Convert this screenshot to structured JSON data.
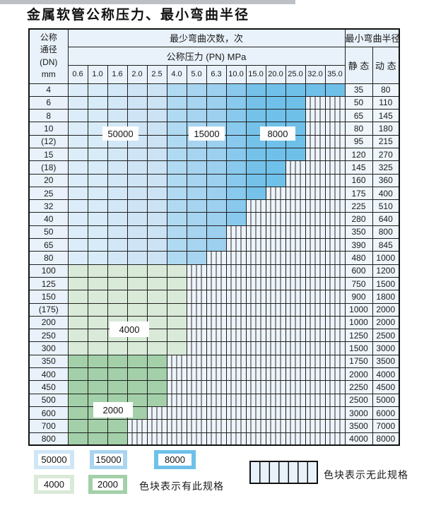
{
  "page": {
    "title": "金属软管公称压力、最小弯曲半径"
  },
  "colors": {
    "grid_line": "#1f1f1f",
    "header_bg": "#e9f2fa",
    "striped_bg": "#edf4fb",
    "stripe_line": "#2e2e2e",
    "blue_columns": [
      "#dcedf9",
      "#d8ebf8",
      "#d3e8f7",
      "#cfe5f6",
      "#cbe3f5",
      "#b0d9f2",
      "#a7d4f0",
      "#9dd0ee",
      "#89c9ed",
      "#74c2ea",
      "#70c1ea",
      "#6fc0e9",
      "#6fc0e9",
      "#6fc0e9"
    ],
    "green_4000": "#d9ead8",
    "green_2000": "#a3d0a9",
    "legend_50000": "#cfe6f7",
    "legend_15000": "#a9d5f0",
    "legend_8000": "#6fc0e9",
    "legend_4000": "#d9ead8",
    "legend_2000": "#a3d0a9"
  },
  "table": {
    "header": {
      "dn_line1": "公称",
      "dn_line2": "通径",
      "dn_line3": "(DN)",
      "dn_line4": "mm",
      "bend_cycles": "最少弯曲次数，次",
      "pressure": "公称压力 (PN) MPa",
      "radius": "最小弯曲半径",
      "static_label": "静 态",
      "dynamic_label": "动 态"
    },
    "pressure_columns": [
      "0.6",
      "1.0",
      "1.6",
      "2.0",
      "2.5",
      "4.0",
      "5.0",
      "6.3",
      "10.0",
      "15.0",
      "20.0",
      "25.0",
      "32.0",
      "35.0"
    ],
    "bend_cycle_bands": {
      "blue_rows_by_pressure": {
        "50000": "0.6–2.5",
        "15000": "4.0–6.3",
        "8000": "10.0–35.0"
      },
      "green_rows_by_dn": {
        "4000": "DN 100–300",
        "2000": "DN 350–800"
      }
    },
    "overlay_labels": [
      "50000",
      "15000",
      "8000",
      "4000",
      "2000"
    ],
    "rows": [
      {
        "dn": "4",
        "band": "blue",
        "colored_columns": 14,
        "static": "35",
        "dynamic": "80"
      },
      {
        "dn": "6",
        "band": "blue",
        "colored_columns": 12,
        "static": "50",
        "dynamic": "110"
      },
      {
        "dn": "8",
        "band": "blue",
        "colored_columns": 12,
        "static": "65",
        "dynamic": "145"
      },
      {
        "dn": "10",
        "band": "blue",
        "colored_columns": 12,
        "static": "80",
        "dynamic": "180"
      },
      {
        "dn": "(12)",
        "band": "blue",
        "colored_columns": 12,
        "static": "95",
        "dynamic": "215"
      },
      {
        "dn": "15",
        "band": "blue",
        "colored_columns": 12,
        "static": "120",
        "dynamic": "270"
      },
      {
        "dn": "(18)",
        "band": "blue",
        "colored_columns": 11,
        "static": "145",
        "dynamic": "325"
      },
      {
        "dn": "20",
        "band": "blue",
        "colored_columns": 11,
        "static": "160",
        "dynamic": "360"
      },
      {
        "dn": "25",
        "band": "blue",
        "colored_columns": 10,
        "static": "175",
        "dynamic": "400"
      },
      {
        "dn": "32",
        "band": "blue",
        "colored_columns": 9,
        "static": "225",
        "dynamic": "510"
      },
      {
        "dn": "40",
        "band": "blue",
        "colored_columns": 9,
        "static": "280",
        "dynamic": "640"
      },
      {
        "dn": "50",
        "band": "blue",
        "colored_columns": 8,
        "static": "350",
        "dynamic": "800"
      },
      {
        "dn": "65",
        "band": "blue",
        "colored_columns": 8,
        "static": "390",
        "dynamic": "845"
      },
      {
        "dn": "80",
        "band": "blue",
        "colored_columns": 7,
        "static": "480",
        "dynamic": "1000"
      },
      {
        "dn": "100",
        "band": "green_4000",
        "colored_columns": 6,
        "static": "600",
        "dynamic": "1200"
      },
      {
        "dn": "125",
        "band": "green_4000",
        "colored_columns": 6,
        "static": "750",
        "dynamic": "1500"
      },
      {
        "dn": "150",
        "band": "green_4000",
        "colored_columns": 6,
        "static": "900",
        "dynamic": "1800"
      },
      {
        "dn": "(175)",
        "band": "green_4000",
        "colored_columns": 6,
        "static": "1000",
        "dynamic": "2000"
      },
      {
        "dn": "200",
        "band": "green_4000",
        "colored_columns": 6,
        "static": "1000",
        "dynamic": "2000"
      },
      {
        "dn": "250",
        "band": "green_4000",
        "colored_columns": 6,
        "static": "1250",
        "dynamic": "2500"
      },
      {
        "dn": "300",
        "band": "green_4000",
        "colored_columns": 6,
        "static": "1500",
        "dynamic": "3000"
      },
      {
        "dn": "350",
        "band": "green_2000",
        "colored_columns": 5,
        "static": "1750",
        "dynamic": "3500"
      },
      {
        "dn": "400",
        "band": "green_2000",
        "colored_columns": 5,
        "static": "2000",
        "dynamic": "4000"
      },
      {
        "dn": "450",
        "band": "green_2000",
        "colored_columns": 5,
        "static": "2250",
        "dynamic": "4500"
      },
      {
        "dn": "500",
        "band": "green_2000",
        "colored_columns": 5,
        "static": "2500",
        "dynamic": "5000"
      },
      {
        "dn": "600",
        "band": "green_2000",
        "colored_columns": 4,
        "static": "3000",
        "dynamic": "6000"
      },
      {
        "dn": "700",
        "band": "green_2000",
        "colored_columns": 3,
        "static": "3500",
        "dynamic": "7000"
      },
      {
        "dn": "800",
        "band": "green_2000",
        "colored_columns": 3,
        "static": "4000",
        "dynamic": "8000"
      }
    ]
  },
  "legend": {
    "has_spec": {
      "items": [
        {
          "value": "50000",
          "color": "#cfe6f7"
        },
        {
          "value": "15000",
          "color": "#a9d5f0"
        },
        {
          "value": "8000",
          "color": "#6fc0e9"
        },
        {
          "value": "4000",
          "color": "#d9ead8"
        },
        {
          "value": "2000",
          "color": "#a3d0a9"
        }
      ],
      "label": "色块表示有此规格"
    },
    "no_spec": {
      "label": "色块表示无此规格"
    }
  }
}
